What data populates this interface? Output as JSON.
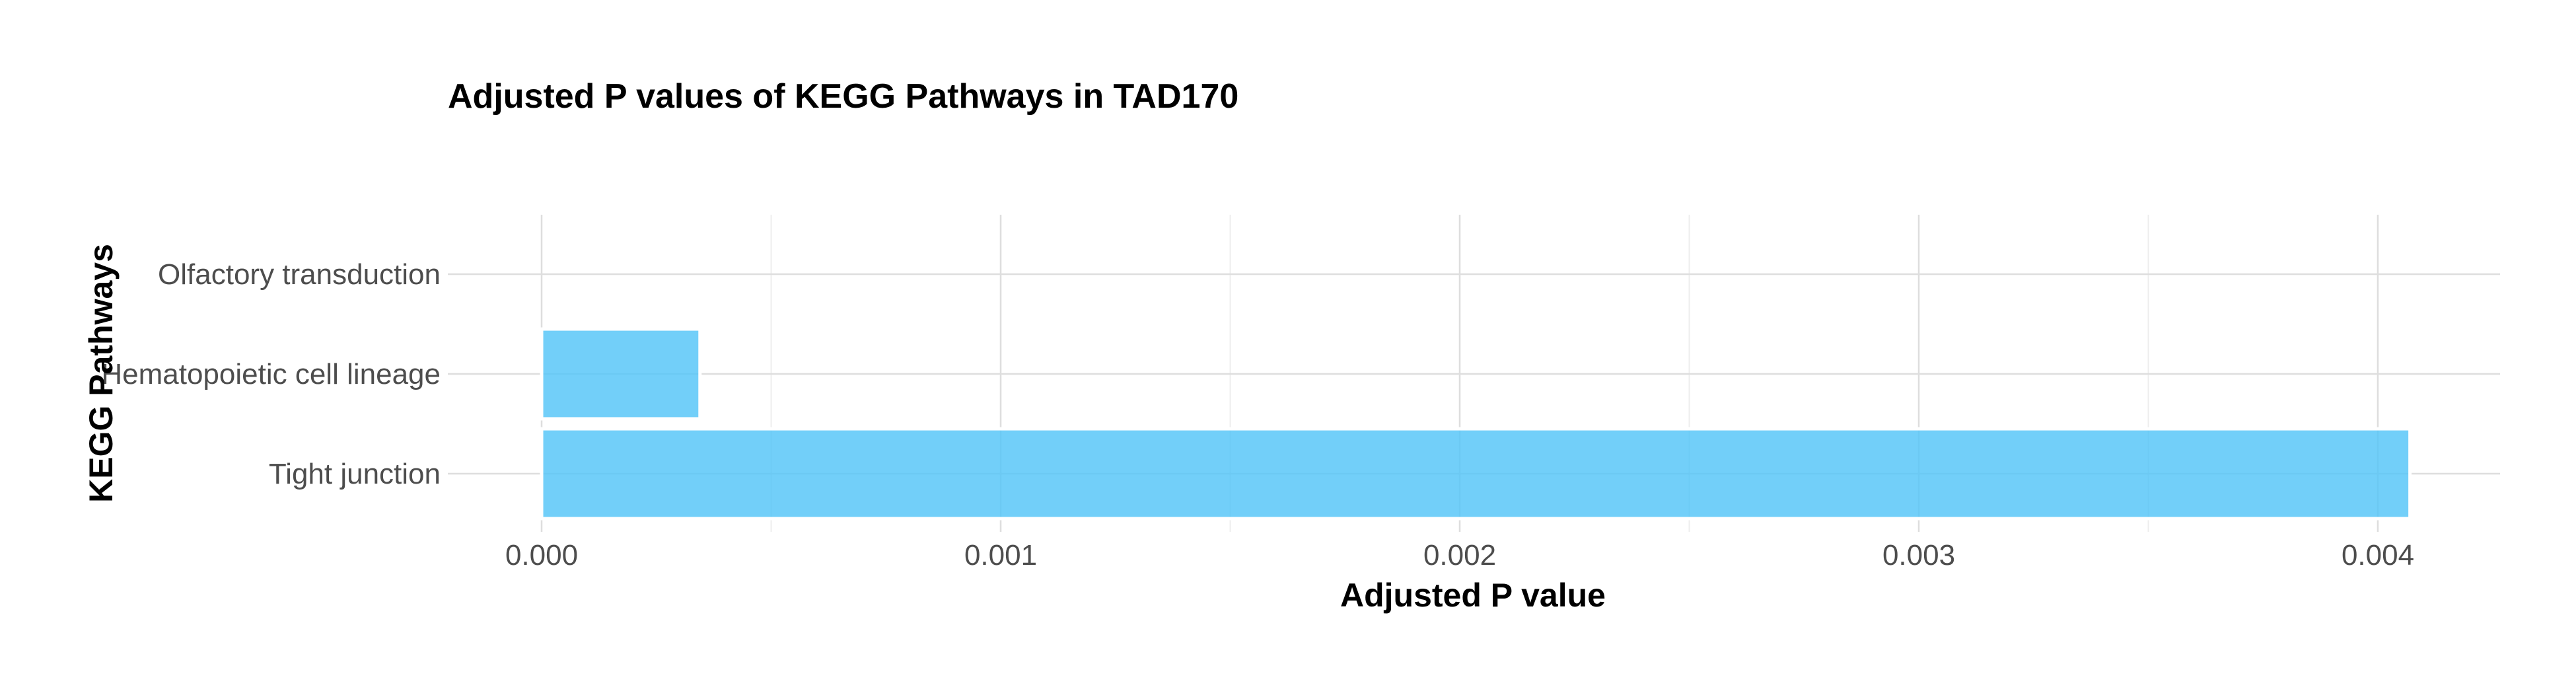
{
  "chart_data": {
    "type": "bar",
    "orientation": "horizontal",
    "title": "Adjusted P values of KEGG Pathways in TAD170",
    "xlabel": "Adjusted P value",
    "ylabel": "KEGG Pathways",
    "categories": [
      "Tight junction",
      "Hematopoietic cell lineage",
      "Olfactory transduction"
    ],
    "values": [
      0.00407,
      0.000345,
      0.0
    ],
    "xlim": [
      0,
      0.00425
    ],
    "xticks": [
      0.0,
      0.001,
      0.002,
      0.003,
      0.004
    ],
    "xtick_labels": [
      "0.000",
      "0.001",
      "0.002",
      "0.003",
      "0.004"
    ],
    "grid": true,
    "bar_color": "#4fc3f7",
    "bar_opacity": 0.8
  }
}
